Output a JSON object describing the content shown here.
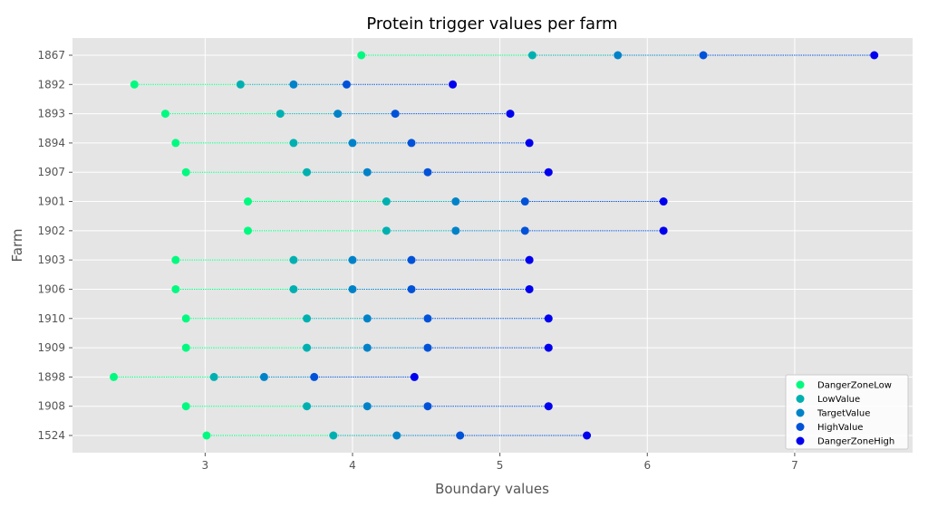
{
  "chart_data": {
    "type": "scatter",
    "title": "Protein trigger values per farm",
    "xlabel": "Boundary values",
    "ylabel": "Farm",
    "xlim": [
      2.1,
      7.8
    ],
    "xticks": [
      3,
      4,
      5,
      6,
      7
    ],
    "grid": true,
    "legend_position": "bottom-right",
    "categories": [
      "1867",
      "1892",
      "1893",
      "1894",
      "1907",
      "1901",
      "1902",
      "1903",
      "1906",
      "1910",
      "1909",
      "1898",
      "1908",
      "1524"
    ],
    "series": [
      {
        "name": "DangerZoneLow",
        "color": "#00fa80",
        "values": [
          4.06,
          2.52,
          2.73,
          2.8,
          2.87,
          3.29,
          3.29,
          2.8,
          2.8,
          2.87,
          2.87,
          2.38,
          2.87,
          3.01
        ]
      },
      {
        "name": "LowValue",
        "color": "#00b0b0",
        "values": [
          5.22,
          3.24,
          3.51,
          3.6,
          3.69,
          4.23,
          4.23,
          3.6,
          3.6,
          3.69,
          3.69,
          3.06,
          3.69,
          3.87
        ]
      },
      {
        "name": "TargetValue",
        "color": "#0082c8",
        "values": [
          5.8,
          3.6,
          3.9,
          4.0,
          4.1,
          4.7,
          4.7,
          4.0,
          4.0,
          4.1,
          4.1,
          3.4,
          4.1,
          4.3
        ]
      },
      {
        "name": "HighValue",
        "color": "#0052d8",
        "values": [
          6.38,
          3.96,
          4.29,
          4.4,
          4.51,
          5.17,
          5.17,
          4.4,
          4.4,
          4.51,
          4.51,
          3.74,
          4.51,
          4.73
        ]
      },
      {
        "name": "DangerZoneHigh",
        "color": "#0000ee",
        "values": [
          7.54,
          4.68,
          5.07,
          5.2,
          5.33,
          6.11,
          6.11,
          5.2,
          5.2,
          5.33,
          5.33,
          4.42,
          5.33,
          5.59
        ]
      }
    ]
  }
}
